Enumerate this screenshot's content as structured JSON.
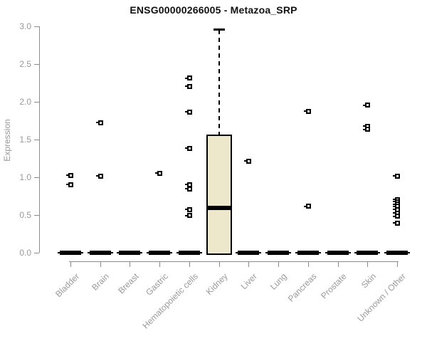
{
  "chart_data": {
    "type": "box",
    "title": "ENSG00000266005 - Metazoa_SRP",
    "xlabel": "",
    "ylabel": "Expression",
    "ylim": [
      0.0,
      3.0
    ],
    "yticks": [
      0.0,
      0.5,
      1.0,
      1.5,
      2.0,
      2.5,
      3.0
    ],
    "grid": "off",
    "legend": "none",
    "categories": [
      "Bladder",
      "Brain",
      "Breast",
      "Gastric",
      "Hematopoietic cells",
      "Kidney",
      "Liver",
      "Lung",
      "Pancreas",
      "Prostate",
      "Skin",
      "Unknown / Other"
    ],
    "boxes": [
      {
        "category": "Bladder",
        "q1": 0,
        "median": 0,
        "q3": 0,
        "whisker_low": 0,
        "whisker_high": 0,
        "outliers": [
          1.03,
          0.91
        ]
      },
      {
        "category": "Brain",
        "q1": 0,
        "median": 0,
        "q3": 0,
        "whisker_low": 0,
        "whisker_high": 0,
        "outliers": [
          1.73,
          1.02
        ]
      },
      {
        "category": "Breast",
        "q1": 0,
        "median": 0,
        "q3": 0,
        "whisker_low": 0,
        "whisker_high": 0,
        "outliers": []
      },
      {
        "category": "Gastric",
        "q1": 0,
        "median": 0,
        "q3": 0,
        "whisker_low": 0,
        "whisker_high": 0,
        "outliers": [
          1.06
        ]
      },
      {
        "category": "Hematopoietic cells",
        "q1": 0,
        "median": 0,
        "q3": 0,
        "whisker_low": 0,
        "whisker_high": 0,
        "outliers": [
          2.32,
          2.21,
          1.87,
          1.39,
          0.91,
          0.85,
          0.58,
          0.5
        ]
      },
      {
        "category": "Kidney",
        "q1": 0,
        "median": 0.59,
        "q3": 1.57,
        "whisker_low": 0,
        "whisker_high": 2.95,
        "outliers": []
      },
      {
        "category": "Liver",
        "q1": 0,
        "median": 0,
        "q3": 0,
        "whisker_low": 0,
        "whisker_high": 0,
        "outliers": [
          1.22
        ]
      },
      {
        "category": "Lung",
        "q1": 0,
        "median": 0,
        "q3": 0,
        "whisker_low": 0,
        "whisker_high": 0,
        "outliers": []
      },
      {
        "category": "Pancreas",
        "q1": 0,
        "median": 0,
        "q3": 0,
        "whisker_low": 0,
        "whisker_high": 0,
        "outliers": [
          1.88,
          0.62
        ]
      },
      {
        "category": "Prostate",
        "q1": 0,
        "median": 0,
        "q3": 0,
        "whisker_low": 0,
        "whisker_high": 0,
        "outliers": []
      },
      {
        "category": "Skin",
        "q1": 0,
        "median": 0,
        "q3": 0,
        "whisker_low": 0,
        "whisker_high": 0,
        "outliers": [
          1.96,
          1.68,
          1.64
        ]
      },
      {
        "category": "Unknown / Other",
        "q1": 0,
        "median": 0,
        "q3": 0,
        "whisker_low": 0,
        "whisker_high": 0,
        "outliers": [
          1.02,
          0.71,
          0.68,
          0.65,
          0.62,
          0.58,
          0.53,
          0.49,
          0.4
        ]
      }
    ],
    "colors": {
      "background": "#ffffff",
      "box_fill": "#EDE7CB",
      "box_border": "#000000",
      "median": "#000000",
      "zero_bar": "#000000",
      "outlier": "#000000",
      "axis": "#8c8c8c",
      "tick_text": "#999999",
      "title_text": "#111111"
    }
  }
}
